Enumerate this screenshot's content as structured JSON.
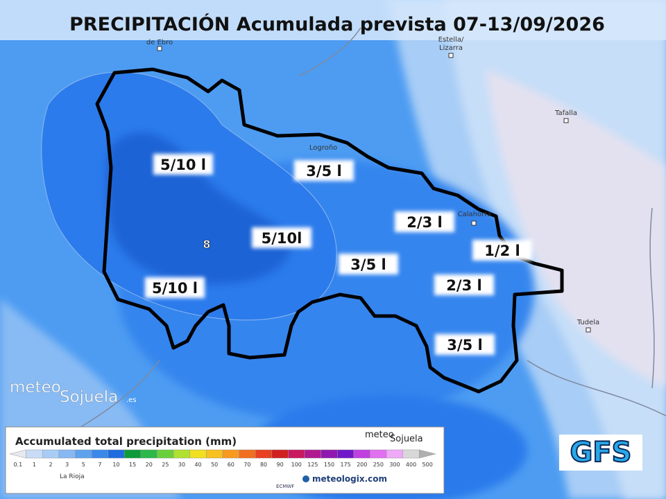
{
  "header": {
    "title": "PRECIPITACIÓN Acumulada prevista 07-13/09/2026"
  },
  "towns": [
    "de Ebro",
    "Estella/",
    "Lizarra",
    "Tafalla",
    "Logroño",
    "Calahorra",
    "Tudela"
  ],
  "regions": [
    "5/10 l",
    "3/5 l",
    "5/10l",
    "2/3 l",
    "1/2 l",
    "3/5 l",
    "5/10 l",
    "2/3 l",
    "3/5 l"
  ],
  "marker": "8",
  "logo": {
    "part1": "meteo",
    "part2": "Sojuela",
    "part3": ".es"
  },
  "legend": {
    "title": "Accumulated total precipitation (mm)",
    "labels": [
      "0.1",
      "1",
      "2",
      "3",
      "5",
      "7",
      "10",
      "15",
      "20",
      "25",
      "30",
      "40",
      "50",
      "60",
      "70",
      "80",
      "90",
      "100",
      "125",
      "150",
      "175",
      "200",
      "250",
      "300",
      "400",
      "500"
    ],
    "region": "La Rioja",
    "source1": "ECMWF",
    "source2": "meteologix.com",
    "logo1": "meteo",
    "logo2": "Sojuela"
  },
  "model": "GFS"
}
